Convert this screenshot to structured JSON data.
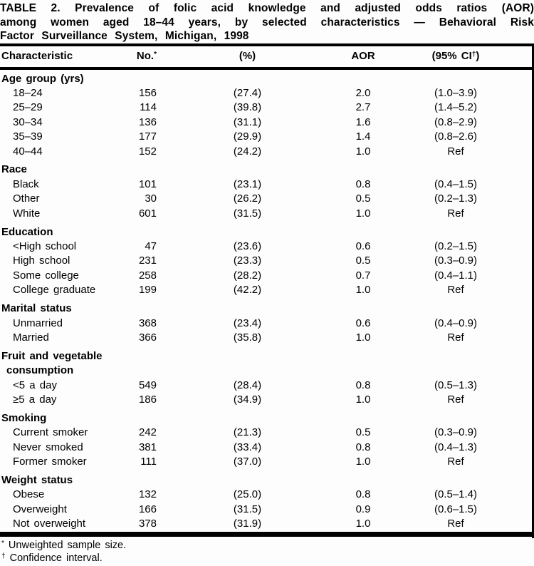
{
  "title_lines": [
    "TABLE 2. Prevalence of folic acid knowledge and adjusted odds ratios (AOR)",
    "among women aged 18–44 years, by selected characteristics — Behavioral Risk",
    "Factor Surveillance System, Michigan, 1998"
  ],
  "columns": [
    "Characteristic",
    "No.*",
    "(%)",
    "AOR",
    "(95% CI†)"
  ],
  "sections": [
    {
      "label": "Age group (yrs)",
      "rows": [
        {
          "label": "18–24",
          "no": "156",
          "pct": "(27.4)",
          "aor": "2.0",
          "ci": "(1.0–3.9)"
        },
        {
          "label": "25–29",
          "no": "114",
          "pct": "(39.8)",
          "aor": "2.7",
          "ci": "(1.4–5.2)"
        },
        {
          "label": "30–34",
          "no": "136",
          "pct": "(31.1)",
          "aor": "1.6",
          "ci": "(0.8–2.9)"
        },
        {
          "label": "35–39",
          "no": "177",
          "pct": "(29.9)",
          "aor": "1.4",
          "ci": "(0.8–2.6)"
        },
        {
          "label": "40–44",
          "no": "152",
          "pct": "(24.2)",
          "aor": "1.0",
          "ci": "Ref"
        }
      ]
    },
    {
      "label": "Race",
      "rows": [
        {
          "label": "Black",
          "no": "101",
          "pct": "(23.1)",
          "aor": "0.8",
          "ci": "(0.4–1.5)"
        },
        {
          "label": "Other",
          "no": "30",
          "pct": "(26.2)",
          "aor": "0.5",
          "ci": "(0.2–1.3)"
        },
        {
          "label": "White",
          "no": "601",
          "pct": "(31.5)",
          "aor": "1.0",
          "ci": "Ref"
        }
      ]
    },
    {
      "label": "Education",
      "rows": [
        {
          "label": "<High school",
          "no": "47",
          "pct": "(23.6)",
          "aor": "0.6",
          "ci": "(0.2–1.5)"
        },
        {
          "label": "High school",
          "no": "231",
          "pct": "(23.3)",
          "aor": "0.5",
          "ci": "(0.3–0.9)"
        },
        {
          "label": "Some college",
          "no": "258",
          "pct": "(28.2)",
          "aor": "0.7",
          "ci": "(0.4–1.1)"
        },
        {
          "label": "College graduate",
          "no": "199",
          "pct": "(42.2)",
          "aor": "1.0",
          "ci": "Ref"
        }
      ]
    },
    {
      "label": "Marital status",
      "rows": [
        {
          "label": "Unmarried",
          "no": "368",
          "pct": "(23.4)",
          "aor": "0.6",
          "ci": "(0.4–0.9)"
        },
        {
          "label": "Married",
          "no": "366",
          "pct": "(35.8)",
          "aor": "1.0",
          "ci": "Ref"
        }
      ]
    },
    {
      "label": "Fruit and vegetable\nconsumption",
      "rows": [
        {
          "label": "<5 a day",
          "no": "549",
          "pct": "(28.4)",
          "aor": "0.8",
          "ci": "(0.5–1.3)"
        },
        {
          "label": "≥5 a day",
          "no": "186",
          "pct": "(34.9)",
          "aor": "1.0",
          "ci": "Ref"
        }
      ]
    },
    {
      "label": "Smoking",
      "rows": [
        {
          "label": "Current smoker",
          "no": "242",
          "pct": "(21.3)",
          "aor": "0.5",
          "ci": "(0.3–0.9)"
        },
        {
          "label": "Never smoked",
          "no": "381",
          "pct": "(33.4)",
          "aor": "0.8",
          "ci": "(0.4–1.3)"
        },
        {
          "label": "Former smoker",
          "no": "111",
          "pct": "(37.0)",
          "aor": "1.0",
          "ci": "Ref"
        }
      ]
    },
    {
      "label": "Weight status",
      "rows": [
        {
          "label": "Obese",
          "no": "132",
          "pct": "(25.0)",
          "aor": "0.8",
          "ci": "(0.5–1.4)"
        },
        {
          "label": "Overweight",
          "no": "166",
          "pct": "(31.5)",
          "aor": "0.9",
          "ci": "(0.6–1.5)"
        },
        {
          "label": "Not overweight",
          "no": "378",
          "pct": "(31.9)",
          "aor": "1.0",
          "ci": "Ref"
        }
      ]
    }
  ],
  "footnotes": [
    {
      "marker": "*",
      "text": "Unweighted sample size."
    },
    {
      "marker": "†",
      "text": "Confidence interval."
    }
  ],
  "colors": {
    "text": "#000000",
    "background": "#fdfdfd",
    "rule": "#000000"
  }
}
